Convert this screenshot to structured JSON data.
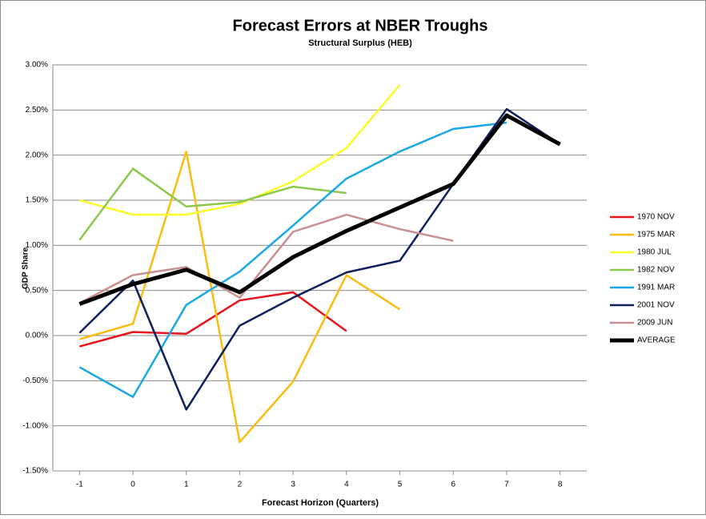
{
  "chart_data": {
    "type": "line",
    "title": "Forecast Errors at NBER Troughs",
    "subtitle": "Structural Surplus (HEB)",
    "x_label": "Forecast Horizon (Quarters)",
    "y_label": "GDP Share",
    "x": [
      -1,
      0,
      1,
      2,
      3,
      4,
      5,
      6,
      7,
      8
    ],
    "xlim": [
      -1.5,
      8.5
    ],
    "xticks": [
      -1,
      0,
      1,
      2,
      3,
      4,
      5,
      6,
      7,
      8
    ],
    "ylim": [
      -1.5,
      3
    ],
    "yticks": [
      {
        "value": -1.5,
        "label": "-1.50%"
      },
      {
        "value": -1,
        "label": "-1.00%"
      },
      {
        "value": -0.5,
        "label": "-0.50%"
      },
      {
        "value": 0,
        "label": "0.00%"
      },
      {
        "value": 0.5,
        "label": "0.50%"
      },
      {
        "value": 1,
        "label": "1.00%"
      },
      {
        "value": 1.5,
        "label": "1.50%"
      },
      {
        "value": 2,
        "label": "2.00%"
      },
      {
        "value": 2.5,
        "label": "2.50%"
      },
      {
        "value": 3,
        "label": "3.00%"
      }
    ],
    "grid": true,
    "legend": "right",
    "series": [
      {
        "name": "1970 NOV",
        "color": "#e8141b",
        "width": 2.5,
        "values": [
          -0.12,
          0.04,
          0.02,
          0.39,
          0.48,
          0.05,
          null,
          null,
          null,
          null
        ]
      },
      {
        "name": "1975 MAR",
        "color": "#fbbb10",
        "width": 2.5,
        "values": [
          -0.04,
          0.13,
          2.04,
          -1.18,
          -0.51,
          0.67,
          0.29,
          null,
          null,
          null
        ]
      },
      {
        "name": "1980 JUL",
        "color": "#fbfb2a",
        "width": 2.5,
        "values": [
          1.5,
          1.34,
          1.34,
          1.46,
          1.71,
          2.08,
          2.78,
          null,
          null,
          null
        ]
      },
      {
        "name": "1982 NOV",
        "color": "#8cc84b",
        "width": 2.5,
        "values": [
          1.06,
          1.85,
          1.43,
          1.48,
          1.65,
          1.58,
          null,
          null,
          null,
          null
        ]
      },
      {
        "name": "1991 MAR",
        "color": "#19a8e6",
        "width": 2.5,
        "values": [
          -0.35,
          -0.68,
          0.34,
          0.71,
          1.22,
          1.74,
          2.04,
          2.29,
          2.36,
          null
        ]
      },
      {
        "name": "2001 NOV",
        "color": "#0f1f5c",
        "width": 2.5,
        "values": [
          0.03,
          0.61,
          -0.82,
          0.11,
          0.42,
          0.7,
          0.83,
          1.68,
          2.51,
          2.12
        ]
      },
      {
        "name": "2009 JUN",
        "color": "#c89090",
        "width": 2.5,
        "values": [
          0.36,
          0.67,
          0.76,
          0.42,
          1.15,
          1.34,
          1.18,
          1.05,
          null,
          null
        ]
      },
      {
        "name": "AVERAGE",
        "color": "#000000",
        "width": 5,
        "values": [
          0.35,
          0.57,
          0.73,
          0.48,
          0.87,
          1.16,
          1.42,
          1.68,
          2.44,
          2.12
        ]
      }
    ]
  }
}
